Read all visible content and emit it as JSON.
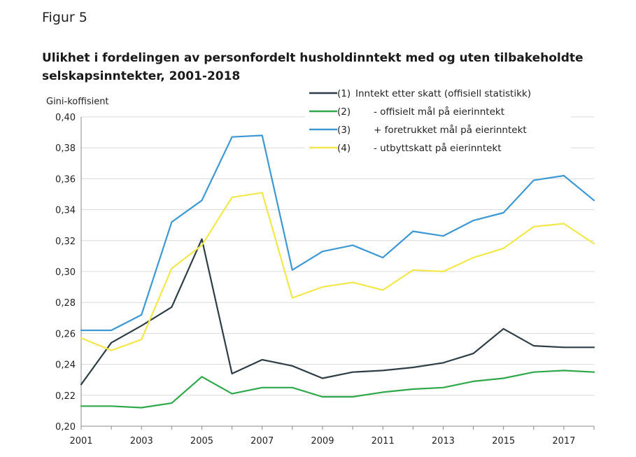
{
  "figure_label": "Figur 5",
  "chart_data": {
    "type": "line",
    "title": "Ulikhet i fordelingen av personfordelt husholdinntekt med og uten tilbakeholdte selskapsinntekter, 2001-2018",
    "ylabel": "Gini-koffisient",
    "xlabel": "",
    "x": [
      2001,
      2002,
      2003,
      2004,
      2005,
      2006,
      2007,
      2008,
      2009,
      2010,
      2011,
      2012,
      2013,
      2014,
      2015,
      2016,
      2017,
      2018
    ],
    "xticks": [
      {
        "value": 2001,
        "label": "2001"
      },
      {
        "value": 2003,
        "label": "2003"
      },
      {
        "value": 2005,
        "label": "2005"
      },
      {
        "value": 2007,
        "label": "2007"
      },
      {
        "value": 2009,
        "label": "2009"
      },
      {
        "value": 2011,
        "label": "2011"
      },
      {
        "value": 2013,
        "label": "2013"
      },
      {
        "value": 2015,
        "label": "2015"
      },
      {
        "value": 2017,
        "label": "2017"
      }
    ],
    "yticks": [
      {
        "value": 0.2,
        "label": "0,20"
      },
      {
        "value": 0.22,
        "label": "0,22"
      },
      {
        "value": 0.24,
        "label": "0,24"
      },
      {
        "value": 0.26,
        "label": "0,26"
      },
      {
        "value": 0.28,
        "label": "0,28"
      },
      {
        "value": 0.3,
        "label": "0,30"
      },
      {
        "value": 0.32,
        "label": "0,32"
      },
      {
        "value": 0.34,
        "label": "0,34"
      },
      {
        "value": 0.36,
        "label": "0,36"
      },
      {
        "value": 0.38,
        "label": "0,38"
      },
      {
        "value": 0.4,
        "label": "0,40"
      }
    ],
    "ylim": [
      0.2,
      0.4
    ],
    "xlim": [
      2001,
      2018
    ],
    "grid": "horizontal",
    "legend_position": "top-right",
    "series": [
      {
        "name": "(1) Inntekt etter skatt (offisiell statistikk)",
        "legend_num": "(1)",
        "legend_text": "Inntekt etter skatt (offisiell statistikk)",
        "color": "#2f3e46",
        "values": [
          0.227,
          0.254,
          0.265,
          0.277,
          0.321,
          0.234,
          0.243,
          0.239,
          0.231,
          0.235,
          0.236,
          0.238,
          0.241,
          0.247,
          0.263,
          0.252,
          0.251,
          0.251
        ]
      },
      {
        "name": "(2) - offisielt mål på eierinntekt",
        "legend_num": "(2)",
        "legend_text": "- offisielt mål på eierinntekt",
        "color": "#2ea84a",
        "values": [
          0.213,
          0.213,
          0.212,
          0.215,
          0.232,
          0.221,
          0.225,
          0.225,
          0.219,
          0.219,
          0.222,
          0.224,
          0.225,
          0.229,
          0.231,
          0.235,
          0.236,
          0.235
        ]
      },
      {
        "name": "(3) + foretrukket mål på eierinntekt",
        "legend_num": "(3)",
        "legend_text": "+ foretrukket mål på eierinntekt",
        "color": "#3d98d3",
        "values": [
          0.262,
          0.262,
          0.272,
          0.332,
          0.346,
          0.387,
          0.388,
          0.301,
          0.313,
          0.317,
          0.309,
          0.326,
          0.323,
          0.333,
          0.338,
          0.359,
          0.362,
          0.346
        ]
      },
      {
        "name": "(4) - utbyttskatt på eierinntekt",
        "legend_num": "(4)",
        "legend_text": "- utbyttskatt på eierinntekt",
        "color": "#f2e84b",
        "values": [
          0.257,
          0.249,
          0.256,
          0.302,
          0.317,
          0.348,
          0.351,
          0.283,
          0.29,
          0.293,
          0.288,
          0.301,
          0.3,
          0.309,
          0.315,
          0.329,
          0.331,
          0.318
        ]
      }
    ]
  }
}
